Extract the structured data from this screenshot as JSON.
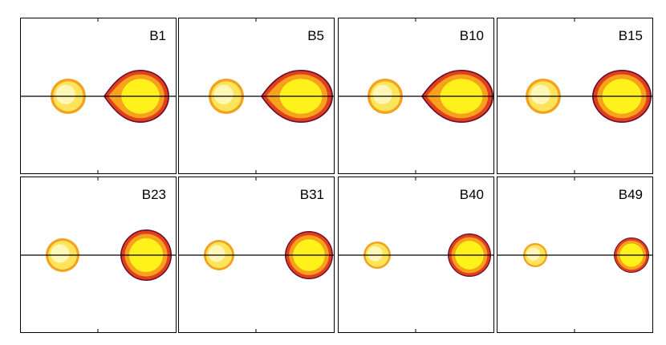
{
  "panels": [
    {
      "label": "B1"
    },
    {
      "label": "B5"
    },
    {
      "label": "B10"
    },
    {
      "label": "B15"
    },
    {
      "label": "B23"
    },
    {
      "label": "B31"
    },
    {
      "label": "B40"
    },
    {
      "label": "B49"
    }
  ]
}
